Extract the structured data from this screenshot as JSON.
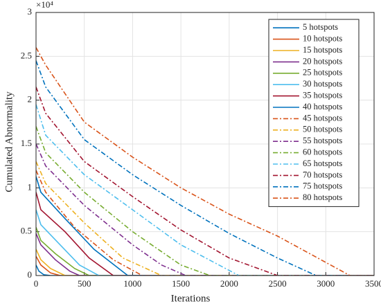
{
  "chart_data": {
    "type": "line",
    "xlabel": "Iterations",
    "ylabel": "Cumulated Abnormality",
    "y_multiplier": "×10⁴",
    "xlim": [
      0,
      3500
    ],
    "xticks": [
      0,
      500,
      1000,
      1500,
      2000,
      2500,
      3000,
      3500
    ],
    "ylim": [
      0,
      30000
    ],
    "yticks": [
      0,
      {
        "value": 5000,
        "label": "0.5"
      },
      {
        "value": 10000,
        "label": "1"
      },
      {
        "value": 15000,
        "label": "1.5"
      },
      {
        "value": 20000,
        "label": "2"
      },
      {
        "value": 25000,
        "label": "2.5"
      },
      {
        "value": 30000,
        "label": "3"
      }
    ],
    "grid": true,
    "legend": "upper right",
    "series": [
      {
        "name": "5 hotspots",
        "color": "#0072BD",
        "linestyle": "solid",
        "x": [
          0,
          30,
          80,
          150,
          3500
        ],
        "values": [
          1200,
          500,
          100,
          0,
          0
        ]
      },
      {
        "name": "10 hotspots",
        "color": "#D95319",
        "linestyle": "solid",
        "x": [
          0,
          50,
          150,
          250,
          3500
        ],
        "values": [
          2200,
          1200,
          300,
          0,
          0
        ]
      },
      {
        "name": "15 hotspots",
        "color": "#EDB120",
        "linestyle": "solid",
        "x": [
          0,
          50,
          150,
          300,
          3500
        ],
        "values": [
          3000,
          1800,
          800,
          0,
          0
        ]
      },
      {
        "name": "20 hotspots",
        "color": "#7E2F8E",
        "linestyle": "solid",
        "x": [
          0,
          50,
          200,
          350,
          450,
          3500
        ],
        "values": [
          4800,
          3500,
          1800,
          500,
          0,
          0
        ]
      },
      {
        "name": "25 hotspots",
        "color": "#77AC30",
        "linestyle": "solid",
        "x": [
          0,
          50,
          200,
          400,
          550,
          3500
        ],
        "values": [
          5500,
          4000,
          2500,
          800,
          0,
          0
        ]
      },
      {
        "name": "30 hotspots",
        "color": "#4DBEEE",
        "linestyle": "solid",
        "x": [
          0,
          50,
          250,
          450,
          650,
          3500
        ],
        "values": [
          7500,
          5800,
          3500,
          1200,
          0,
          0
        ]
      },
      {
        "name": "35 hotspots",
        "color": "#A2142F",
        "linestyle": "solid",
        "x": [
          0,
          50,
          300,
          550,
          800,
          3500
        ],
        "values": [
          9500,
          7500,
          5000,
          2000,
          0,
          0
        ]
      },
      {
        "name": "40 hotspots",
        "color": "#0072BD",
        "linestyle": "solid",
        "x": [
          0,
          50,
          300,
          600,
          950,
          3500
        ],
        "values": [
          11300,
          9500,
          6500,
          3000,
          0,
          0
        ]
      },
      {
        "name": "45 hotspots",
        "color": "#D95319",
        "linestyle": "dashdot",
        "x": [
          0,
          100,
          400,
          800,
          1100,
          3500
        ],
        "values": [
          12000,
          9500,
          5500,
          1800,
          0,
          0
        ]
      },
      {
        "name": "50 hotspots",
        "color": "#EDB120",
        "linestyle": "dashdot",
        "x": [
          0,
          100,
          500,
          900,
          1300,
          3500
        ],
        "values": [
          13000,
          10500,
          6000,
          2000,
          0,
          0
        ]
      },
      {
        "name": "55 hotspots",
        "color": "#7E2F8E",
        "linestyle": "dashdot",
        "x": [
          0,
          100,
          500,
          1000,
          1300,
          1550,
          3500
        ],
        "values": [
          15000,
          12500,
          8000,
          3500,
          1200,
          0,
          0
        ]
      },
      {
        "name": "60 hotspots",
        "color": "#77AC30",
        "linestyle": "dashdot",
        "x": [
          0,
          100,
          500,
          1000,
          1500,
          1800,
          3500
        ],
        "values": [
          17000,
          14000,
          9500,
          5000,
          1200,
          0,
          0
        ]
      },
      {
        "name": "65 hotspots",
        "color": "#4DBEEE",
        "linestyle": "dashdot",
        "x": [
          0,
          100,
          500,
          1000,
          1500,
          2100,
          3500
        ],
        "values": [
          19500,
          16000,
          11500,
          7500,
          3500,
          0,
          0
        ]
      },
      {
        "name": "70 hotspots",
        "color": "#A2142F",
        "linestyle": "dashdot",
        "x": [
          0,
          100,
          500,
          1000,
          1500,
          2000,
          2500,
          3500
        ],
        "values": [
          21500,
          18500,
          13000,
          9000,
          5200,
          2000,
          0,
          0
        ]
      },
      {
        "name": "75 hotspots",
        "color": "#0072BD",
        "linestyle": "dashdot",
        "x": [
          0,
          100,
          500,
          1000,
          1500,
          2000,
          2500,
          2900,
          3500
        ],
        "values": [
          24500,
          21500,
          15500,
          11500,
          8000,
          4800,
          2000,
          0,
          0
        ]
      },
      {
        "name": "80 hotspots",
        "color": "#D95319",
        "linestyle": "dashdot",
        "x": [
          0,
          100,
          500,
          1000,
          1500,
          2000,
          2500,
          3000,
          3250,
          3500
        ],
        "values": [
          26000,
          24000,
          17500,
          13500,
          10000,
          7000,
          4500,
          1500,
          0,
          0
        ]
      }
    ]
  }
}
